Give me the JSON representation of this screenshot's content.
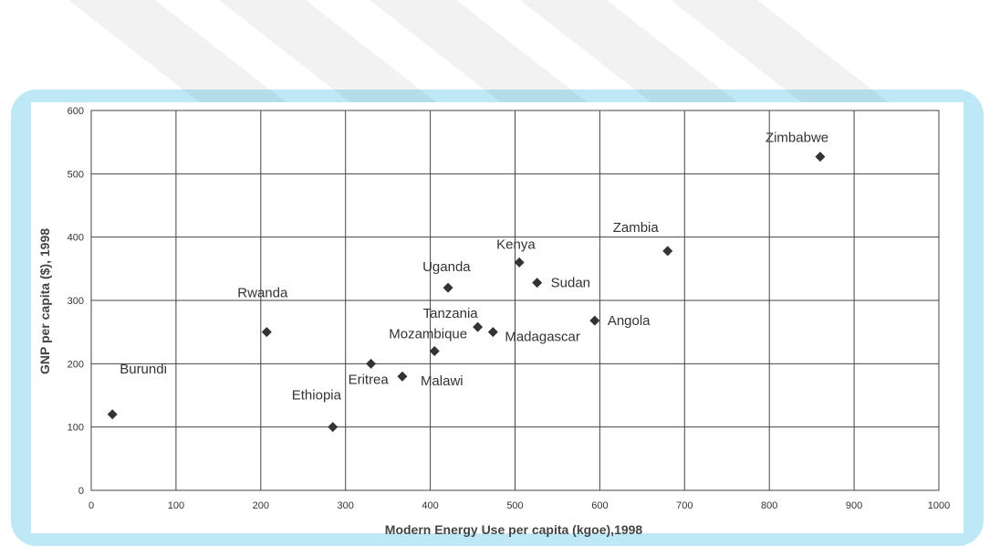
{
  "chart_data": {
    "type": "scatter",
    "xlabel": "Modern Energy Use per capita (kgoe),1998",
    "ylabel": "GNP per capita ($), 1998",
    "xlim": [
      0,
      1000
    ],
    "ylim": [
      0,
      600
    ],
    "xticks": [
      0,
      100,
      200,
      300,
      400,
      500,
      600,
      700,
      800,
      900,
      1000
    ],
    "yticks": [
      0,
      100,
      200,
      300,
      400,
      500,
      600
    ],
    "grid": true,
    "marker_color": "#333333",
    "points": [
      {
        "label": "Burundi",
        "x": 25,
        "y": 120
      },
      {
        "label": "Rwanda",
        "x": 207,
        "y": 250
      },
      {
        "label": "Ethiopia",
        "x": 285,
        "y": 100
      },
      {
        "label": "Eritrea",
        "x": 330,
        "y": 200
      },
      {
        "label": "Malawi",
        "x": 367,
        "y": 180
      },
      {
        "label": "Mozambique",
        "x": 405,
        "y": 220
      },
      {
        "label": "Uganda",
        "x": 421,
        "y": 320
      },
      {
        "label": "Tanzania",
        "x": 456,
        "y": 258
      },
      {
        "label": "Madagascar",
        "x": 474,
        "y": 250
      },
      {
        "label": "Kenya",
        "x": 505,
        "y": 360
      },
      {
        "label": "Sudan",
        "x": 526,
        "y": 328
      },
      {
        "label": "Angola",
        "x": 594,
        "y": 268
      },
      {
        "label": "Zambia",
        "x": 680,
        "y": 378
      },
      {
        "label": "Zimbabwe",
        "x": 860,
        "y": 527
      }
    ]
  },
  "colors": {
    "frame": "#bfe8f6",
    "grid": "#444444",
    "marker": "#333333"
  }
}
